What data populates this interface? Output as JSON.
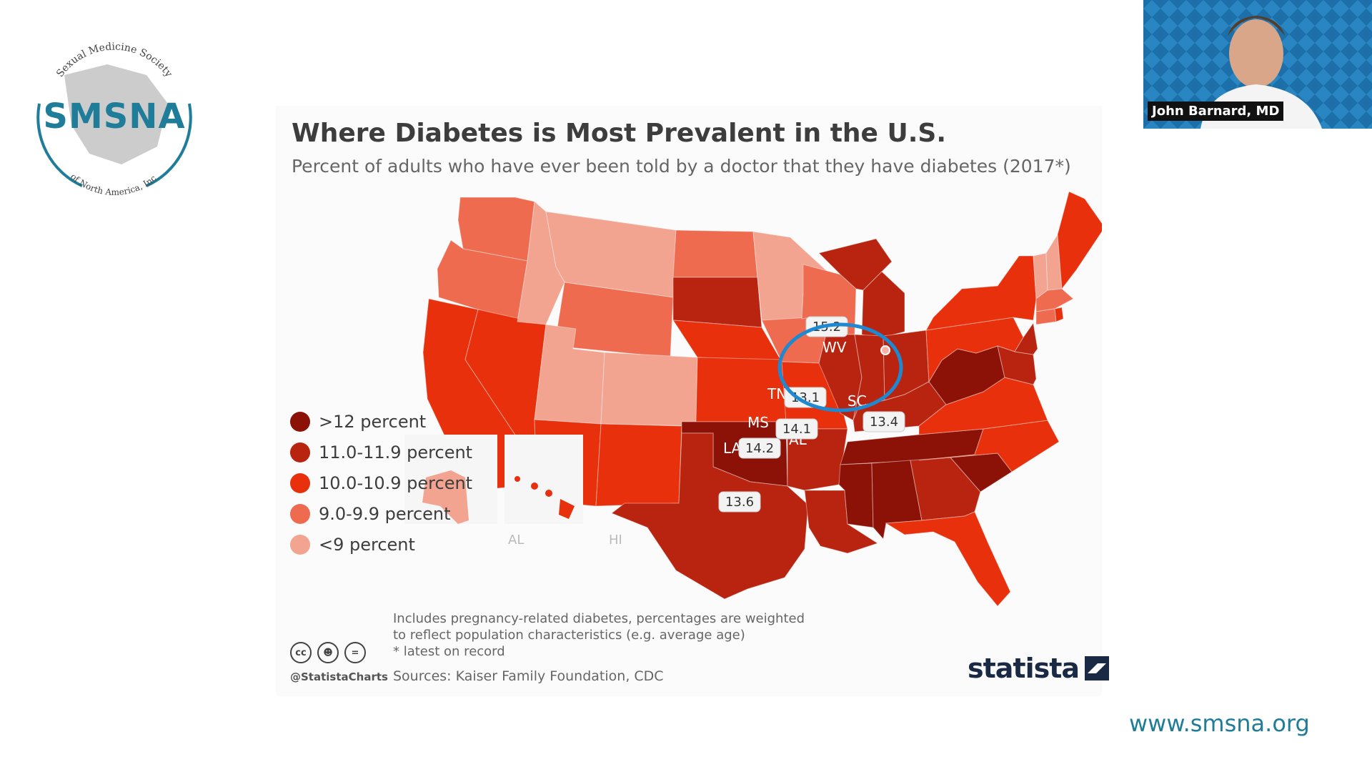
{
  "logo": {
    "acronym": "SMSNA",
    "arc_top": "Sexual Medicine Society",
    "arc_bottom": "of North America, Inc."
  },
  "slide": {
    "title": "Where Diabetes is Most Prevalent in the U.S.",
    "subtitle": "Percent of adults who have ever been told by a doctor that they have diabetes (2017*)",
    "legend": [
      {
        "label": ">12 percent",
        "color": "#8c1208"
      },
      {
        "label": "11.0-11.9 percent",
        "color": "#b92410"
      },
      {
        "label": "10.0-10.9 percent",
        "color": "#e8300d"
      },
      {
        "label": "9.0-9.9 percent",
        "color": "#ee6b50"
      },
      {
        "label": "<9 percent",
        "color": "#f2a491"
      }
    ],
    "state_labels": [
      "WV",
      "TN",
      "SC",
      "MS",
      "AL",
      "LA"
    ],
    "callouts": [
      "15.2",
      "13.1",
      "13.4",
      "14.1",
      "14.2",
      "13.6"
    ],
    "inset_labels": [
      "AL",
      "HI"
    ],
    "notes": [
      "Includes pregnancy-related diabetes, percentages are weighted",
      "to reflect population characteristics (e.g. average age)",
      "* latest on record"
    ],
    "sources": "Sources: Kaiser Family Foundation, CDC",
    "handle": "@StatistaCharts",
    "brand": "statista",
    "highlight_color": "#1e88d0"
  },
  "webcam": {
    "name": "John Barnard, MD"
  },
  "footer": {
    "url": "www.smsna.org"
  }
}
